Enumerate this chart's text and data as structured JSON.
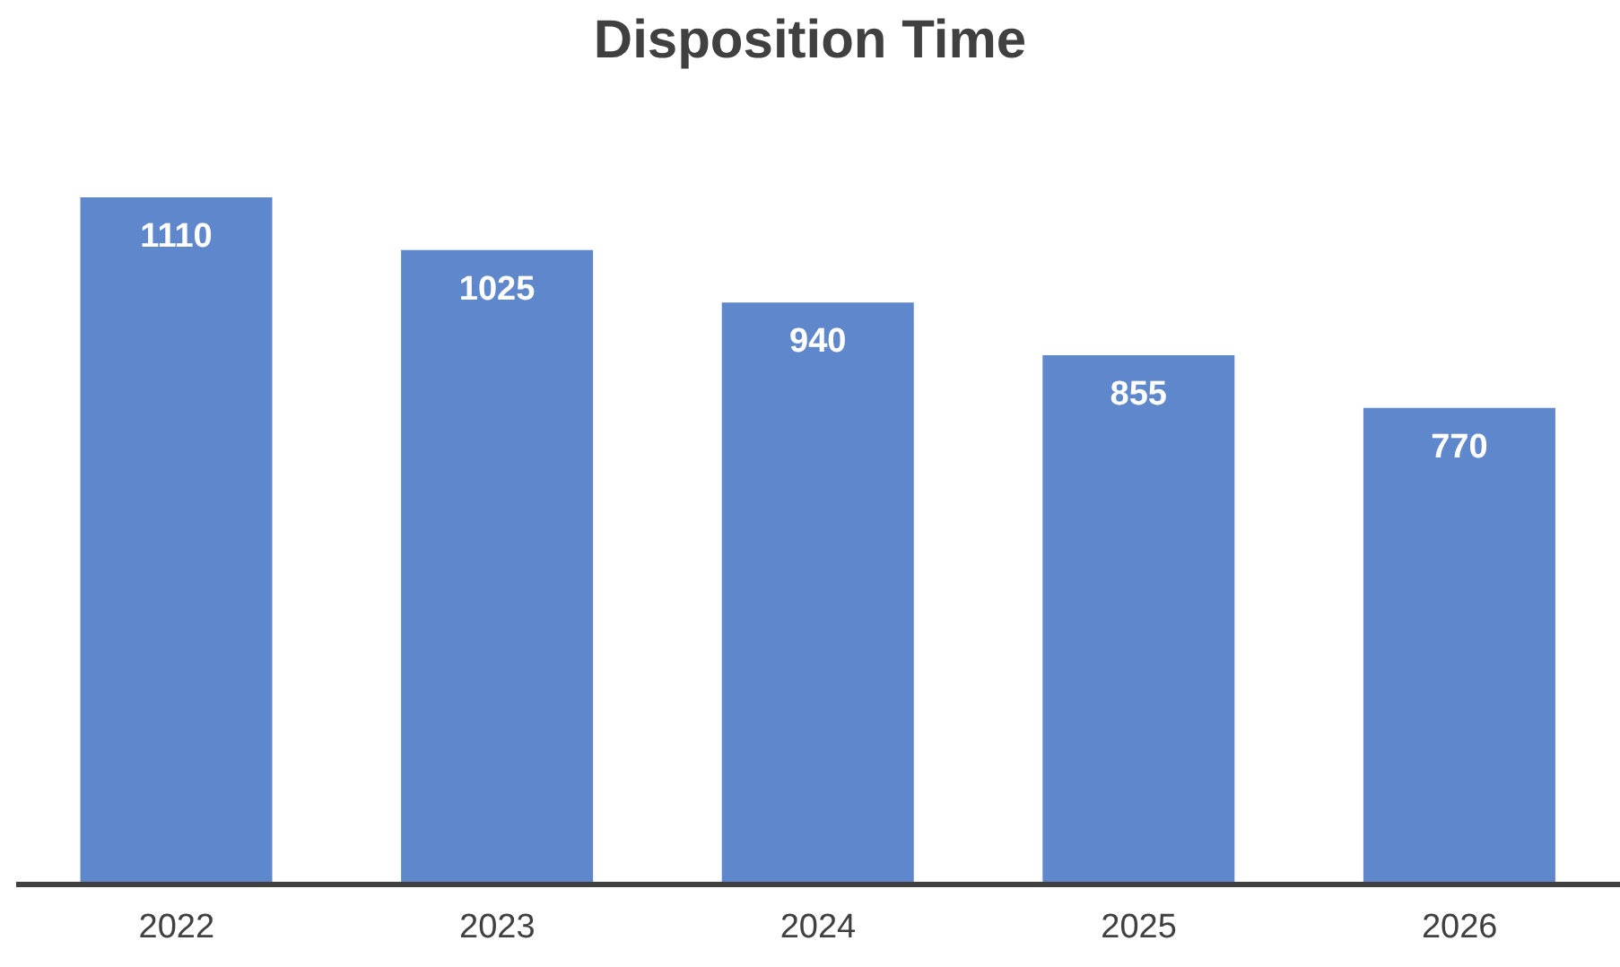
{
  "chart_data": {
    "type": "bar",
    "title": "Disposition Time",
    "categories": [
      "2022",
      "2023",
      "2024",
      "2025",
      "2026"
    ],
    "values": [
      1110,
      1025,
      940,
      855,
      770
    ],
    "color": "#5f87cc",
    "tick_labels": "x",
    "data_labels": true,
    "grid": false,
    "legend": false
  }
}
